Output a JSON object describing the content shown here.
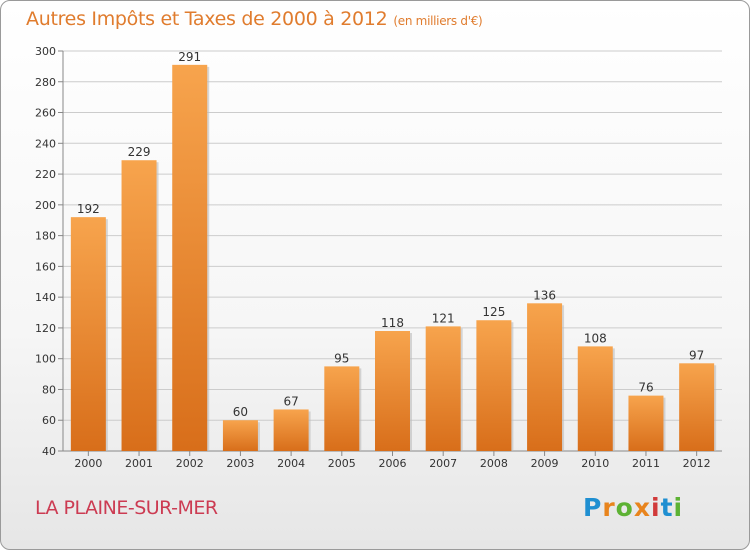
{
  "header": {
    "title": "Autres Impôts et Taxes de 2000 à 2012",
    "subtitle": "(en milliers d'€)"
  },
  "commune": "LA PLAINE-SUR-MER",
  "logo": {
    "letters": [
      "P",
      "r",
      "o",
      "x",
      "i",
      "t",
      "i"
    ]
  },
  "colors": {
    "bar_light": "#f7a44d",
    "bar_dark": "#d86e1a",
    "title": "#e07c2e",
    "commune": "#cc3b52",
    "grid": "#cccccc"
  },
  "chart_data": {
    "type": "bar",
    "categories": [
      "2000",
      "2001",
      "2002",
      "2003",
      "2004",
      "2005",
      "2006",
      "2007",
      "2008",
      "2009",
      "2010",
      "2011",
      "2012"
    ],
    "values": [
      192,
      229,
      291,
      60,
      67,
      95,
      118,
      121,
      125,
      136,
      108,
      76,
      97
    ],
    "ylim": [
      40,
      300
    ],
    "yticks": [
      40,
      60,
      80,
      100,
      120,
      140,
      160,
      180,
      200,
      220,
      240,
      260,
      280,
      300
    ],
    "grid": true
  }
}
